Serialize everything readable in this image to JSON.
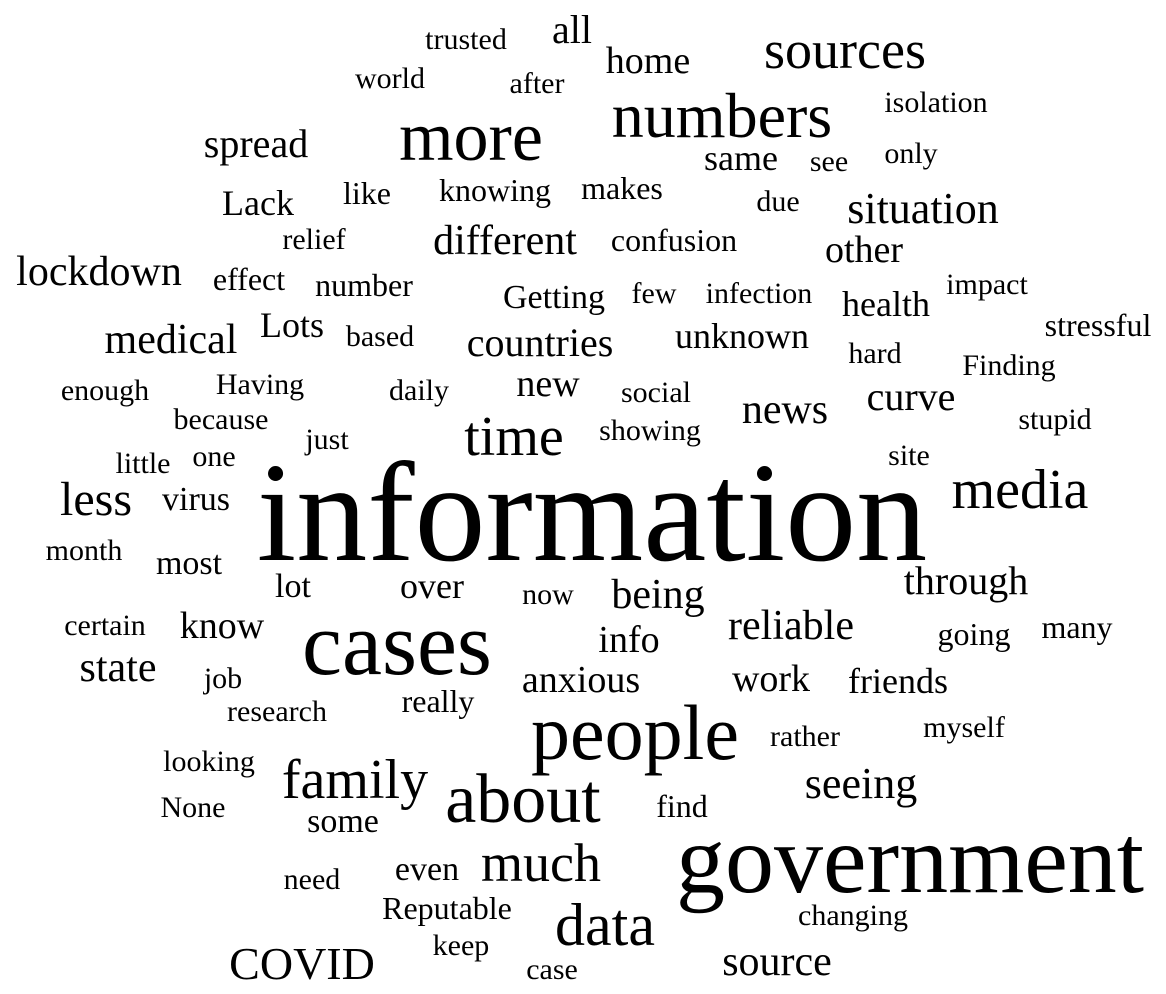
{
  "words": [
    "information",
    "government",
    "cases",
    "people",
    "about",
    "more",
    "numbers",
    "data",
    "family",
    "much",
    "media",
    "time",
    "sources",
    "less",
    "different",
    "lockdown",
    "medical",
    "situation",
    "countries",
    "seeing",
    "COVID",
    "source",
    "news",
    "state",
    "being",
    "reliable",
    "through",
    "curve",
    "new",
    "anxious",
    "spread",
    "other",
    "work",
    "same",
    "know",
    "info",
    "home",
    "all",
    "friends",
    "unknown",
    "health",
    "over",
    "Lack",
    "Lots",
    "virus",
    "most",
    "Getting",
    "Reputable",
    "some",
    "even",
    "lot",
    "knowing",
    "makes",
    "confusion",
    "number",
    "effect",
    "like",
    "stressful",
    "going",
    "many",
    "find",
    "really",
    "isolation",
    "trusted",
    "world",
    "after",
    "only",
    "see",
    "due",
    "relief",
    "impact",
    "infection",
    "few",
    "based",
    "hard",
    "Finding",
    "enough",
    "Having",
    "daily",
    "social",
    "because",
    "showing",
    "stupid",
    "just",
    "little",
    "one",
    "site",
    "month",
    "now",
    "certain",
    "job",
    "research",
    "rather",
    "myself",
    "looking",
    "None",
    "need",
    "changing",
    "keep",
    "case"
  ],
  "text_color": "#000000",
  "background_color": "#ffffff"
}
